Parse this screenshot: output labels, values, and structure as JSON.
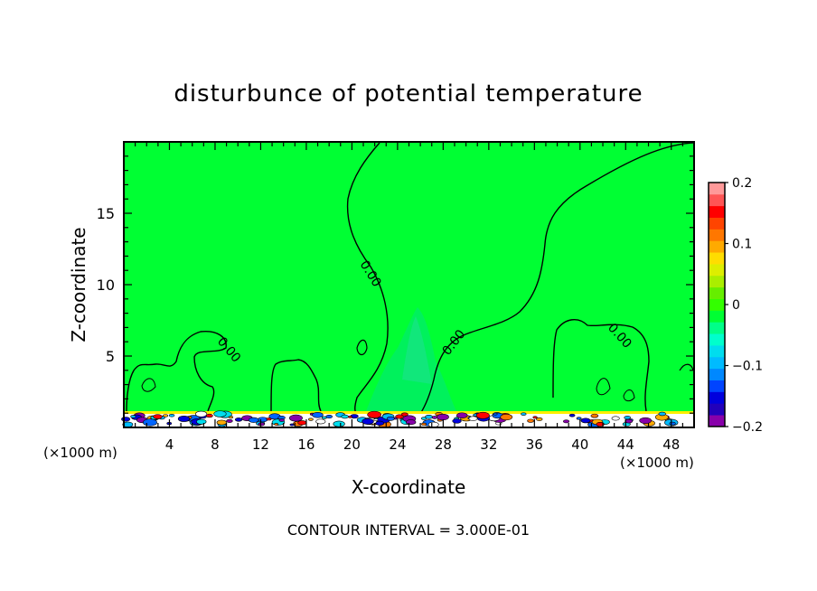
{
  "chart_data": {
    "type": "heatmap",
    "title": "disturbunce of potential temperature",
    "xlabel": "X-coordinate",
    "ylabel": "Z-coordinate",
    "x_unit_left": "(×1000 m)",
    "x_unit_right": "(×1000 m)",
    "xlim": [
      0,
      50
    ],
    "ylim": [
      0,
      20
    ],
    "x_ticks": [
      4,
      8,
      12,
      16,
      20,
      24,
      28,
      32,
      36,
      40,
      44,
      48
    ],
    "y_ticks": [
      5,
      10,
      15
    ],
    "contour_labels": [
      "0.00",
      "0.00",
      "0.00",
      "0.00"
    ],
    "colorbar": {
      "min": -0.2,
      "max": 0.2,
      "tick_values": [
        0.2,
        0.1,
        0,
        -0.1,
        -0.2
      ],
      "tick_labels": [
        "0.2",
        "0.1",
        "0",
        "−0.1",
        "−0.2"
      ],
      "colors": [
        "#8800aa",
        "#2200bb",
        "#0000dd",
        "#0044ff",
        "#0088ff",
        "#00bbff",
        "#00ddee",
        "#00ffcc",
        "#00ff88",
        "#00ff33",
        "#33ff00",
        "#66ee00",
        "#aaee00",
        "#ddee00",
        "#ffdd00",
        "#ffaa00",
        "#ff7700",
        "#ff4400",
        "#ff0000",
        "#ff5555",
        "#ff9999"
      ]
    },
    "footer": "CONTOUR INTERVAL = 3.000E-01"
  }
}
